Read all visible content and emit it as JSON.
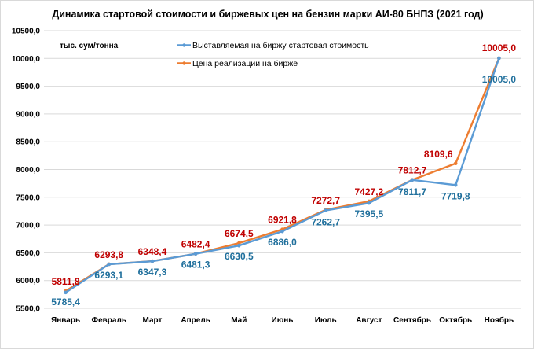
{
  "chart_data": {
    "type": "line",
    "title": "Динамика стартовой стоимости и биржевых цен на бензин марки АИ-80 БНПЗ (2021 год)",
    "unit_label": "тыс. сум/тонна",
    "categories": [
      "Январь",
      "Февраль",
      "Март",
      "Апрель",
      "Май",
      "Июнь",
      "Июль",
      "Август",
      "Сентябрь",
      "Октябрь",
      "Ноябрь"
    ],
    "y_ticks": [
      "5500,0",
      "6000,0",
      "6500,0",
      "7000,0",
      "7500,0",
      "8000,0",
      "8500,0",
      "9000,0",
      "9500,0",
      "10000,0",
      "10500,0"
    ],
    "ylim": [
      5500,
      10500
    ],
    "grid": true,
    "legend_position": "top-center",
    "series": [
      {
        "name": "Выставляемая на биржу стартовая стоимость",
        "color": "#5b9bd5",
        "label_color": "#1f6f9c",
        "values": [
          5785.4,
          6293.1,
          6347.3,
          6481.3,
          6630.5,
          6886.0,
          7262.7,
          7395.5,
          7811.7,
          7719.8,
          10005.0
        ],
        "labels": [
          "5785,4",
          "6293,1",
          "6347,3",
          "6481,3",
          "6630,5",
          "6886,0",
          "7262,7",
          "7395,5",
          "7811,7",
          "7719,8",
          "10005,0"
        ]
      },
      {
        "name": "Цена реализации на бирже",
        "color": "#ed7d31",
        "label_color": "#c00000",
        "values": [
          5811.8,
          6293.8,
          6348.4,
          6482.4,
          6674.5,
          6921.8,
          7272.7,
          7427.2,
          7812.7,
          8109.6,
          10005.0
        ],
        "labels": [
          "5811,8",
          "6293,8",
          "6348,4",
          "6482,4",
          "6674,5",
          "6921,8",
          "7272,7",
          "7427,2",
          "7812,7",
          "8109,6",
          "10005,0"
        ]
      }
    ]
  }
}
